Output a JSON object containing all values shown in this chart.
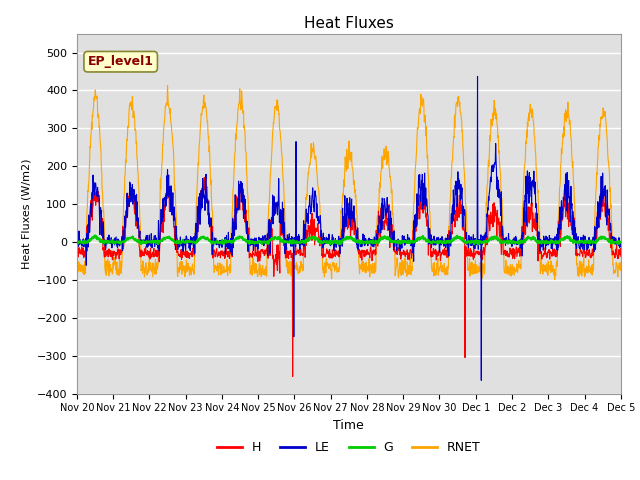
{
  "title": "Heat Fluxes",
  "ylabel": "Heat Fluxes (W/m2)",
  "xlabel": "Time",
  "ylim": [
    -400,
    550
  ],
  "yticks": [
    -400,
    -300,
    -200,
    -100,
    0,
    100,
    200,
    300,
    400,
    500
  ],
  "colors": {
    "H": "#ff0000",
    "LE": "#0000cc",
    "G": "#00cc00",
    "RNET": "#ffa500"
  },
  "legend_label": "EP_level1",
  "legend_text_color": "#8b0000",
  "legend_bg": "#ffffcc",
  "legend_border": "#aaaa00",
  "background_color": "#e0e0e0",
  "line_width": 0.8,
  "tick_labels": [
    "Nov 20",
    "Nov 21",
    "Nov 22",
    "Nov 23",
    "Nov 24",
    "Nov 25",
    "Nov 26",
    "Nov 27",
    "Nov 28",
    "Nov 29",
    "Nov 30",
    "Dec 1",
    "Dec 2",
    "Dec 3",
    "Dec 4",
    "Dec 5"
  ]
}
